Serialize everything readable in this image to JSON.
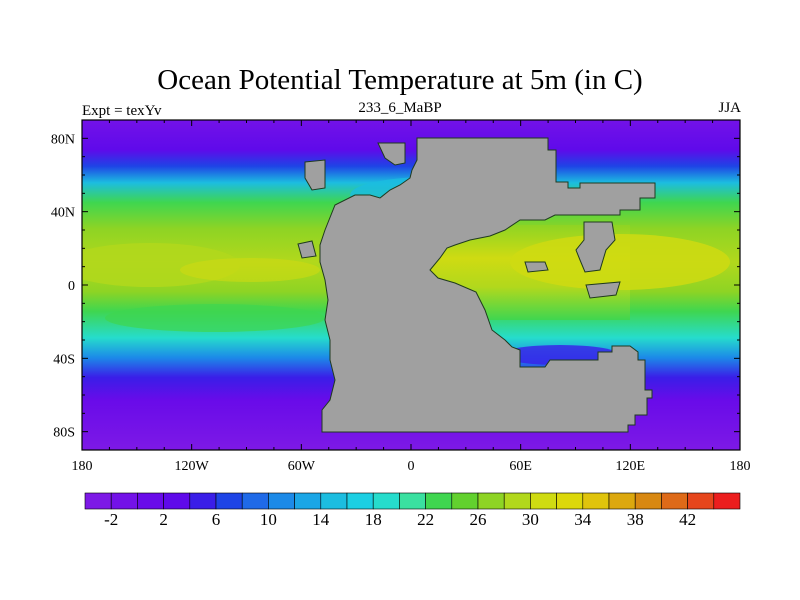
{
  "title": "Ocean Potential Temperature at 5m (in C)",
  "left_string": "Expt = texYv",
  "center_string": "233_6_MaBP",
  "right_string": "JJA",
  "map": {
    "projection": "cylindrical-equidistant",
    "land_color": "#a0a0a0",
    "x_ticks": [
      "180",
      "120W",
      "60W",
      "0",
      "60E",
      "120E",
      "180"
    ],
    "y_ticks": [
      "80N",
      "40N",
      "0",
      "40S",
      "80S"
    ]
  },
  "colorbar": {
    "levels": [
      "-2",
      "2",
      "6",
      "10",
      "14",
      "18",
      "22",
      "26",
      "30",
      "34",
      "38",
      "42"
    ],
    "colors": [
      "#7d19e6",
      "#7312e8",
      "#690be9",
      "#5f0aea",
      "#3a1ee8",
      "#1e44e6",
      "#1f6ae8",
      "#1c8ae8",
      "#1ba6e6",
      "#1cbde0",
      "#1ccfe3",
      "#26dccc",
      "#3ae0a0",
      "#3fd650",
      "#62d12e",
      "#8ed424",
      "#b2d81c",
      "#cfdb12",
      "#dcd80a",
      "#e0c40c",
      "#dca80e",
      "#d88812",
      "#de6a18",
      "#e6461c",
      "#ec1e1e"
    ]
  }
}
